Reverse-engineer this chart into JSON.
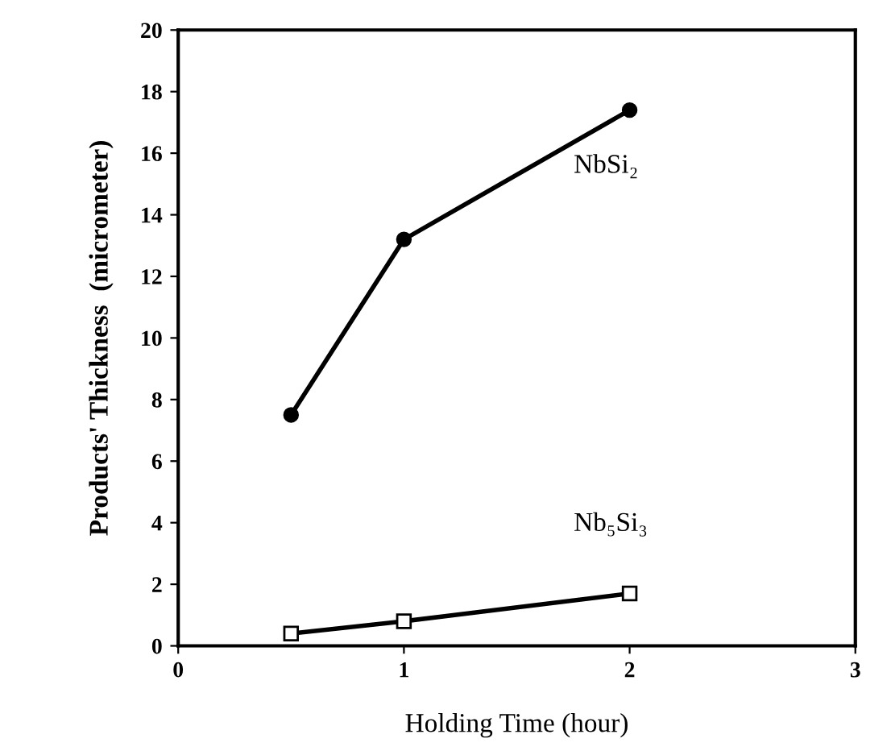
{
  "chart_data": {
    "type": "line",
    "xlabel": "Holding Time (hour)",
    "ylabel": "Products' Thickness  (micrometer)",
    "x": [
      0.5,
      1,
      2
    ],
    "series": [
      {
        "name": "NbSi₂",
        "color": "#000000",
        "marker": "circle",
        "values": [
          7.5,
          13.2,
          17.4
        ]
      },
      {
        "name": "Nb₅Si₃",
        "color": "#000000",
        "marker": "square",
        "values": [
          0.4,
          0.8,
          1.7
        ]
      }
    ],
    "xlim": [
      0,
      3
    ],
    "xticks": [
      0,
      1,
      2,
      3
    ],
    "ylim": [
      0,
      20
    ],
    "yticks": [
      0,
      2,
      4,
      6,
      8,
      10,
      12,
      14,
      16,
      18,
      20
    ],
    "grid": false,
    "legend": false,
    "line_style": "solid"
  }
}
